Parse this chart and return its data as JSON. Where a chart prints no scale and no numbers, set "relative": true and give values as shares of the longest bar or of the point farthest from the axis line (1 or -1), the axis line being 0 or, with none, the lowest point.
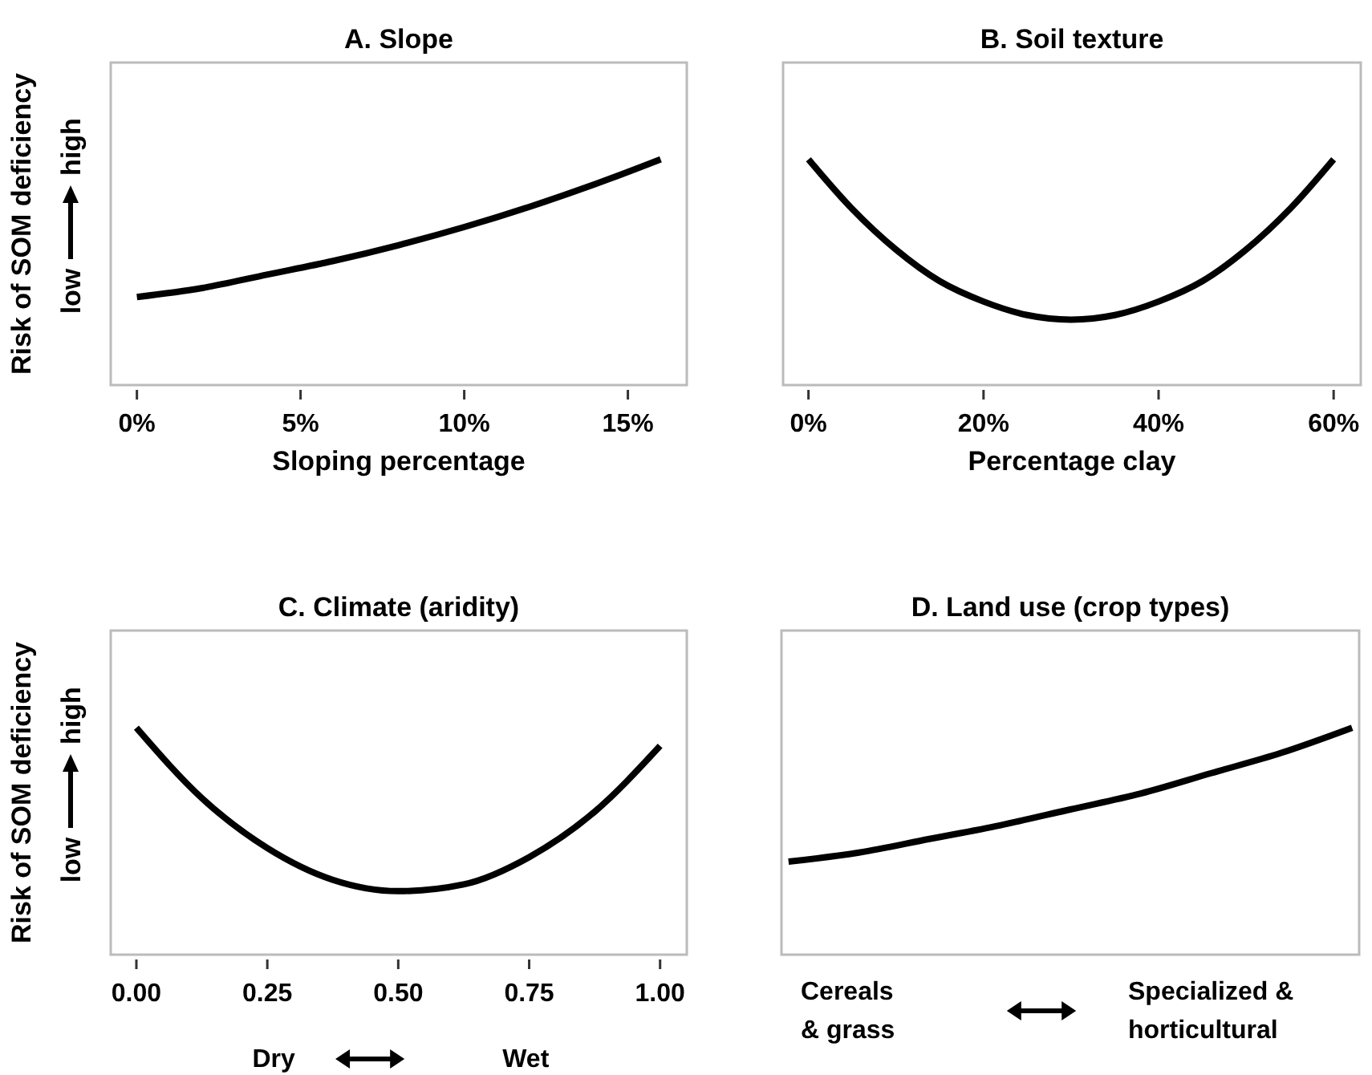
{
  "chart_data": [
    {
      "type": "line",
      "title": "A. Slope",
      "xlabel": "Sloping percentage",
      "ylabel": "Risk of SOM deficiency",
      "relative": true,
      "annotations": [
        "low",
        "high"
      ],
      "xlim": [
        -0.8,
        16.8
      ],
      "xticks": [
        {
          "value": 0,
          "label": "0%"
        },
        {
          "value": 5,
          "label": "5%"
        },
        {
          "value": 10,
          "label": "10%"
        },
        {
          "value": 15,
          "label": "15%"
        }
      ],
      "x": [
        0,
        2,
        4,
        6,
        8,
        10,
        12,
        14,
        16
      ],
      "series": [
        {
          "color": "#000000",
          "values": [
            0.39,
            0.43,
            0.49,
            0.55,
            0.62,
            0.7,
            0.79,
            0.89,
            1
          ]
        }
      ]
    },
    {
      "type": "line",
      "title": "B. Soil texture",
      "xlabel": "Percentage clay",
      "relative": true,
      "xlim": [
        -2.9,
        63.1
      ],
      "xticks": [
        {
          "value": 0,
          "label": "0%"
        },
        {
          "value": 20,
          "label": "20%"
        },
        {
          "value": 40,
          "label": "40%"
        },
        {
          "value": 60,
          "label": "60%"
        }
      ],
      "x": [
        0,
        5,
        10,
        15,
        20,
        25,
        30,
        35,
        40,
        45,
        50,
        55,
        60
      ],
      "series": [
        {
          "color": "#000000",
          "values": [
            1,
            0.78,
            0.6,
            0.46,
            0.37,
            0.31,
            0.29,
            0.31,
            0.37,
            0.46,
            0.6,
            0.78,
            1
          ]
        }
      ]
    },
    {
      "type": "line",
      "title": "C. Climate (aridity)",
      "ylabel": "Risk of SOM deficiency",
      "relative": true,
      "annotations": [
        "low",
        "high",
        "Dry",
        "Wet"
      ],
      "xlim": [
        -0.049,
        1.051
      ],
      "xticks": [
        {
          "value": 0,
          "label": "0.00"
        },
        0.25,
        {
          "value": 0.5,
          "label": "0.50"
        },
        0.75,
        {
          "value": 1,
          "label": "1.00"
        }
      ],
      "x": [
        0,
        0.125,
        0.25,
        0.375,
        0.5,
        0.625,
        0.75,
        0.875,
        1
      ],
      "series": [
        {
          "color": "#000000",
          "values": [
            1,
            0.69,
            0.47,
            0.33,
            0.28,
            0.31,
            0.43,
            0.63,
            0.92
          ]
        }
      ]
    },
    {
      "type": "line",
      "title": "D. Land use (crop types)",
      "relative": true,
      "annotations": [
        "Cereals\n& grass",
        "Specialized &\nhorticultural"
      ],
      "categories": [
        null,
        null,
        null,
        null,
        null,
        null,
        null,
        null,
        null
      ],
      "series": [
        {
          "color": "#000000",
          "values": [
            0.41,
            0.45,
            0.51,
            0.57,
            0.64,
            0.71,
            0.8,
            0.89,
            1
          ]
        }
      ]
    }
  ]
}
